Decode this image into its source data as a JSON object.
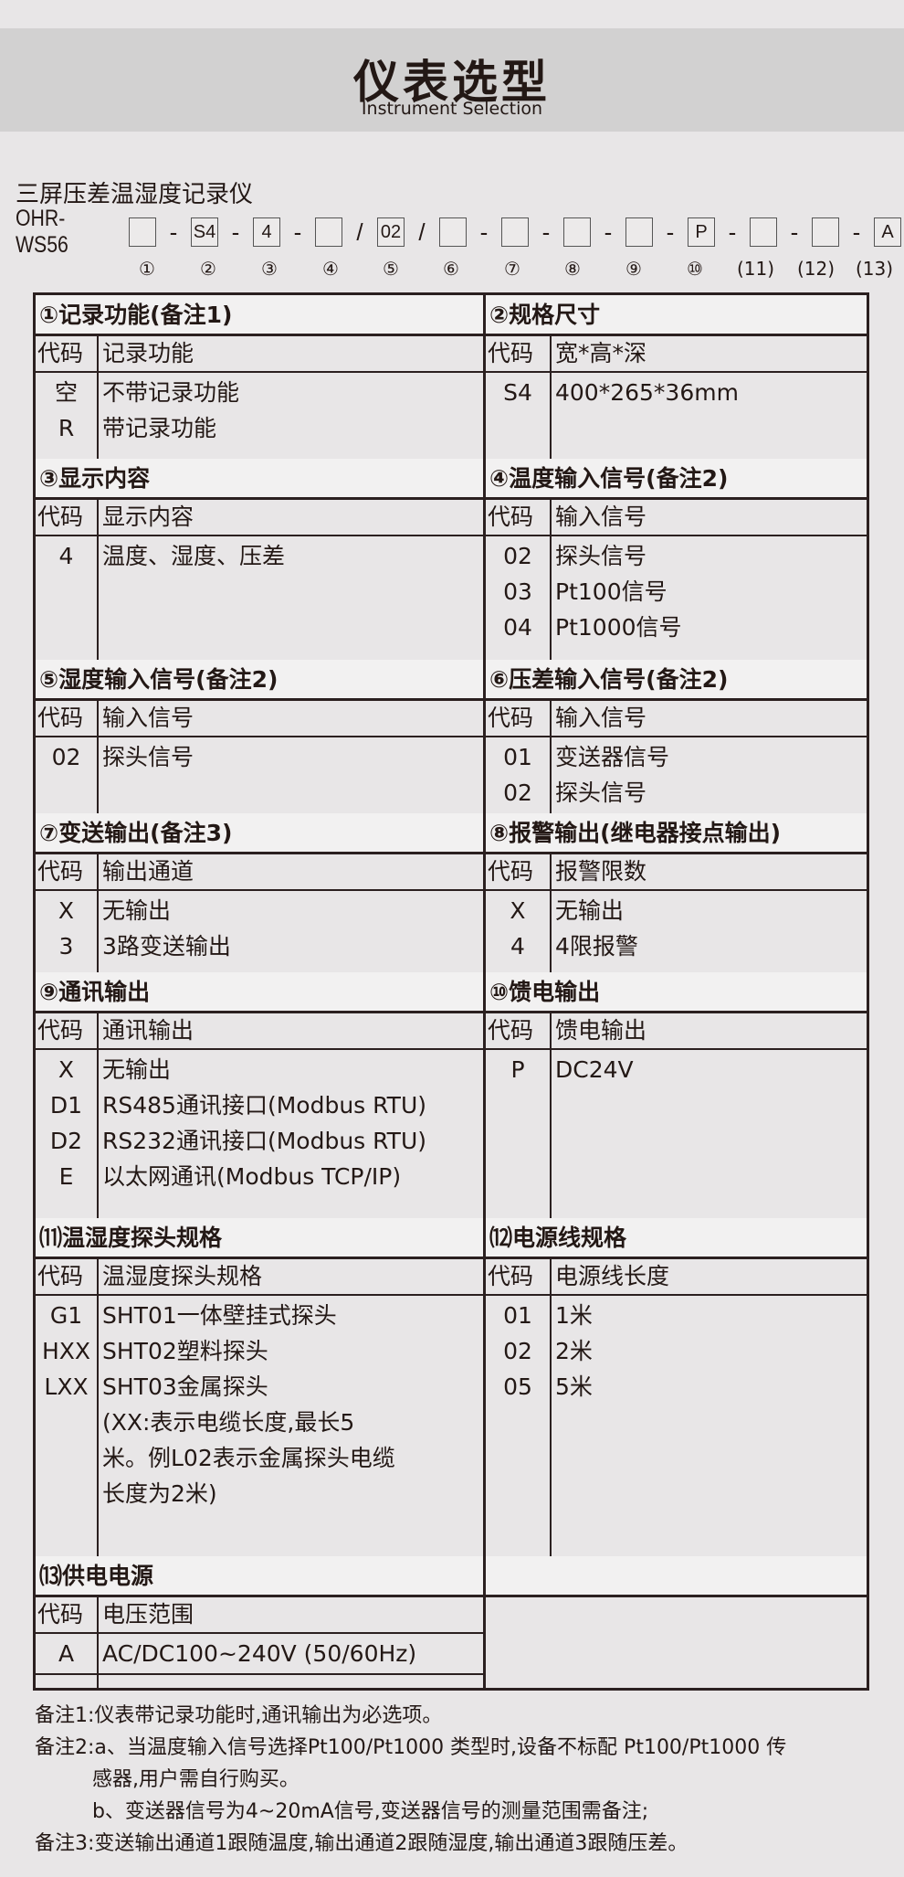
{
  "header": {
    "title": "仪表选型",
    "subtitle": "Instrument Selection"
  },
  "product_name": "三屏压差温湿度记录仪",
  "model_code": {
    "prefix": "OHR-WS56",
    "slots": [
      "",
      "S4",
      "4",
      "",
      "02",
      "",
      "",
      "",
      "",
      "P",
      "",
      "",
      "A"
    ],
    "separators": [
      "-",
      "-",
      "-",
      "/",
      "/",
      "-",
      "-",
      "-",
      "-",
      "-",
      "-",
      "-"
    ],
    "numbers": [
      "①",
      "②",
      "③",
      "④",
      "⑤",
      "⑥",
      "⑦",
      "⑧",
      "⑨",
      "⑩",
      "(11)",
      "(12)",
      "(13)"
    ]
  },
  "sections": [
    {
      "title": "①记录功能(备注1)",
      "code_header": "代码",
      "desc_header": "记录功能",
      "rows": [
        {
          "code": "空",
          "desc": "不带记录功能"
        },
        {
          "code": "R",
          "desc": "带记录功能"
        }
      ]
    },
    {
      "title": "②规格尺寸",
      "code_header": "代码",
      "desc_header": "宽*高*深",
      "rows": [
        {
          "code": "S4",
          "desc": "400*265*36mm"
        }
      ]
    },
    {
      "title": "③显示内容",
      "code_header": "代码",
      "desc_header": "显示内容",
      "rows": [
        {
          "code": "4",
          "desc": "温度、湿度、压差"
        }
      ]
    },
    {
      "title": "④温度输入信号(备注2)",
      "code_header": "代码",
      "desc_header": "输入信号",
      "rows": [
        {
          "code": "02",
          "desc": "探头信号"
        },
        {
          "code": "03",
          "desc": "Pt100信号"
        },
        {
          "code": "04",
          "desc": "Pt1000信号"
        }
      ]
    },
    {
      "title": "⑤湿度输入信号(备注2)",
      "code_header": "代码",
      "desc_header": "输入信号",
      "rows": [
        {
          "code": "02",
          "desc": "探头信号"
        }
      ]
    },
    {
      "title": "⑥压差输入信号(备注2)",
      "code_header": "代码",
      "desc_header": "输入信号",
      "rows": [
        {
          "code": "01",
          "desc": "变送器信号"
        },
        {
          "code": "02",
          "desc": "探头信号"
        }
      ]
    },
    {
      "title": "⑦变送输出(备注3)",
      "code_header": "代码",
      "desc_header": "输出通道",
      "rows": [
        {
          "code": "X",
          "desc": "无输出"
        },
        {
          "code": "3",
          "desc": "3路变送输出"
        }
      ]
    },
    {
      "title": "⑧报警输出(继电器接点输出)",
      "code_header": "代码",
      "desc_header": "报警限数",
      "rows": [
        {
          "code": "X",
          "desc": "无输出"
        },
        {
          "code": "4",
          "desc": "4限报警"
        }
      ]
    },
    {
      "title": "⑨通讯输出",
      "code_header": "代码",
      "desc_header": "通讯输出",
      "rows": [
        {
          "code": "X",
          "desc": "无输出"
        },
        {
          "code": "D1",
          "desc": "RS485通讯接口(Modbus RTU)"
        },
        {
          "code": "D2",
          "desc": "RS232通讯接口(Modbus RTU)"
        },
        {
          "code": "E",
          "desc": "以太网通讯(Modbus TCP/IP)"
        }
      ]
    },
    {
      "title": "⑩馈电输出",
      "code_header": "代码",
      "desc_header": "馈电输出",
      "rows": [
        {
          "code": "P",
          "desc": "DC24V"
        }
      ]
    },
    {
      "title": "⑾温湿度探头规格",
      "code_header": "代码",
      "desc_header": "温湿度探头规格",
      "rows": [
        {
          "code": "G1",
          "desc": "SHT01一体壁挂式探头"
        },
        {
          "code": "HXX",
          "desc": "SHT02塑料探头"
        },
        {
          "code": "LXX",
          "desc": "SHT03金属探头"
        },
        {
          "code": "",
          "desc": "(XX:表示电缆长度,最长5"
        },
        {
          "code": "",
          "desc": "米。例L02表示金属探头电缆"
        },
        {
          "code": "",
          "desc": "长度为2米)"
        }
      ]
    },
    {
      "title": "⑿电源线规格",
      "code_header": "代码",
      "desc_header": "电源线长度",
      "rows": [
        {
          "code": "01",
          "desc": "1米"
        },
        {
          "code": "02",
          "desc": "2米"
        },
        {
          "code": "05",
          "desc": "5米"
        }
      ]
    },
    {
      "title": "⒀供电电源",
      "code_header": "代码",
      "desc_header": "电压范围",
      "rows": [
        {
          "code": "A",
          "desc": "AC/DC100~240V (50/60Hz)"
        }
      ]
    }
  ],
  "notes": [
    "备注1:仪表带记录功能时,通讯输出为必选项。",
    "备注2:a、当温度输入信号选择Pt100/Pt1000 类型时,设备不标配 Pt100/Pt1000 传",
    "         感器,用户需自行购买。",
    "         b、变送器信号为4~20mA信号,变送器信号的测量范围需备注;",
    "备注3:变送输出通道1跟随温度,输出通道2跟随湿度,输出通道3跟随压差。"
  ]
}
